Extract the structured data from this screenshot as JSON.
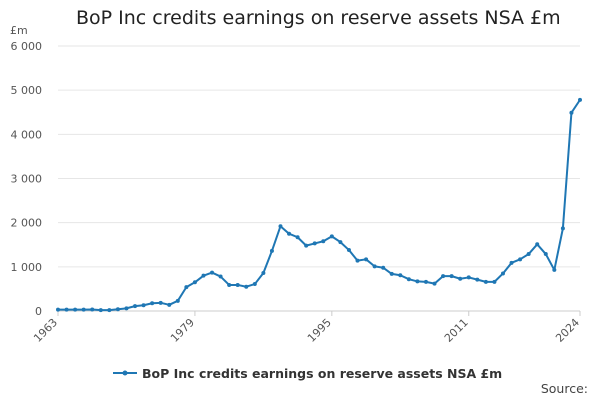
{
  "chart_data": {
    "type": "line",
    "title": "BoP Inc credits earnings on reserve assets NSA £m",
    "y_unit": "£m",
    "xlabel": "",
    "ylabel": "",
    "xlim": [
      1963,
      2024
    ],
    "ylim": [
      0,
      6000
    ],
    "x_ticks": [
      1963,
      1979,
      1995,
      2011,
      2024
    ],
    "y_ticks": [
      0,
      1000,
      2000,
      3000,
      4000,
      5000,
      6000
    ],
    "y_tick_labels": [
      "0",
      "1 000",
      "2 000",
      "3 000",
      "4 000",
      "5 000",
      "6 000"
    ],
    "grid": "horizontal",
    "legend_position": "bottom",
    "colors": {
      "series": "#1f77b4",
      "grid": "#e6e6e6",
      "axis": "#cccccc"
    },
    "series": [
      {
        "name": "BoP Inc credits earnings on reserve assets NSA £m",
        "x": [
          1963,
          1964,
          1965,
          1966,
          1967,
          1968,
          1969,
          1970,
          1971,
          1972,
          1973,
          1974,
          1975,
          1976,
          1977,
          1978,
          1979,
          1980,
          1981,
          1982,
          1983,
          1984,
          1985,
          1986,
          1987,
          1988,
          1989,
          1990,
          1991,
          1992,
          1993,
          1994,
          1995,
          1996,
          1997,
          1998,
          1999,
          2000,
          2001,
          2002,
          2003,
          2004,
          2005,
          2006,
          2007,
          2008,
          2009,
          2010,
          2011,
          2012,
          2013,
          2014,
          2015,
          2016,
          2017,
          2018,
          2019,
          2020,
          2021,
          2022,
          2023,
          2024
        ],
        "values": [
          30,
          30,
          30,
          30,
          35,
          20,
          20,
          40,
          60,
          110,
          130,
          175,
          185,
          140,
          230,
          540,
          650,
          800,
          870,
          780,
          590,
          590,
          550,
          610,
          860,
          1360,
          1920,
          1750,
          1670,
          1480,
          1530,
          1580,
          1690,
          1560,
          1380,
          1140,
          1170,
          1010,
          980,
          840,
          810,
          720,
          670,
          660,
          620,
          790,
          790,
          730,
          760,
          710,
          660,
          660,
          850,
          1090,
          1170,
          1290,
          1510,
          1290,
          930,
          1870,
          4490,
          4780
        ]
      }
    ],
    "source_label": "Source:"
  }
}
